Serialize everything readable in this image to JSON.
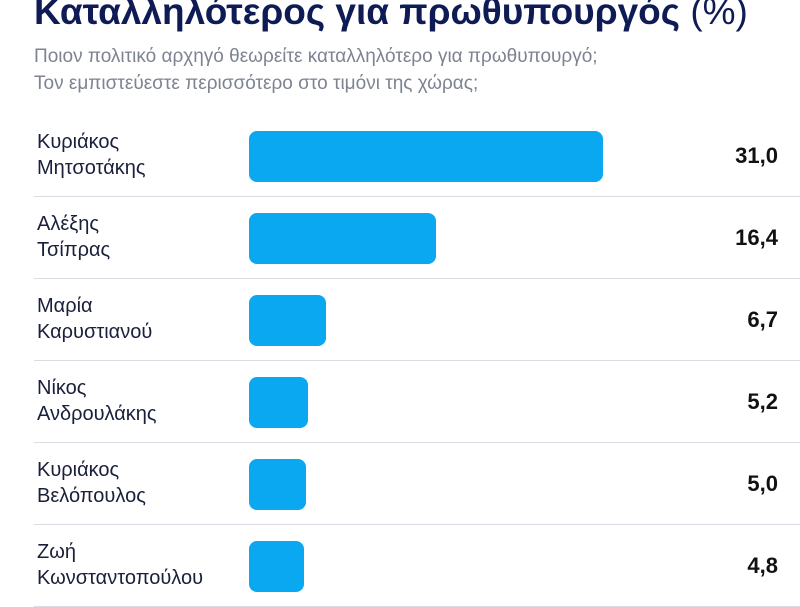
{
  "header": {
    "title_main": "Καταλληλότερος για πρωθυπουργός",
    "title_unit": "(%)",
    "subtitle_line1": "Ποιον πολιτικό αρχηγό θεωρείτε καταλληλότερο για πρωθυπουργό;",
    "subtitle_line2": "Τον εμπιστεύεστε περισσότερο στο τιμόνι της χώρας;"
  },
  "colors": {
    "bar": "#0aa8f0",
    "title": "#0e1b54",
    "subtitle": "#7d8391",
    "divider": "#d9dce2"
  },
  "chart_data": {
    "type": "bar",
    "orientation": "horizontal",
    "title": "Καταλληλότερος για πρωθυπουργός (%)",
    "categories": [
      [
        "Κυριάκος",
        "Μητσοτάκης"
      ],
      [
        "Αλέξης",
        "Τσίπρας"
      ],
      [
        "Μαρία",
        "Καρυστιανού"
      ],
      [
        "Νίκος",
        "Ανδρουλάκης"
      ],
      [
        "Κυριάκος",
        "Βελόπουλος"
      ],
      [
        "Ζωή",
        "Κωνσταντοπούλου"
      ]
    ],
    "values": [
      31.0,
      16.4,
      6.7,
      5.2,
      5.0,
      4.8
    ],
    "value_labels": [
      "31,0",
      "16,4",
      "6,7",
      "5,2",
      "5,0",
      "4,8"
    ],
    "xlim": [
      0,
      31.0
    ],
    "grid": false
  }
}
